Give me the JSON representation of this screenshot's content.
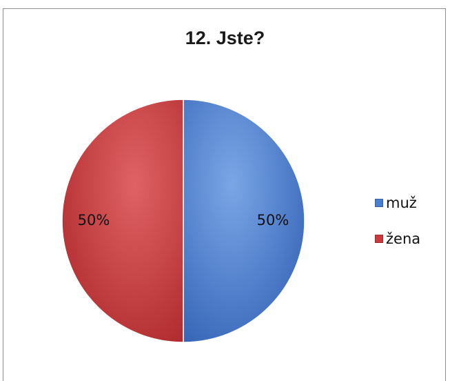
{
  "chart_data": {
    "type": "pie",
    "title": "12. Jste?",
    "categories": [
      "muž",
      "žena"
    ],
    "values": [
      50,
      50
    ],
    "data_labels": [
      "50%",
      "50%"
    ],
    "colors": [
      "#4a7fd0",
      "#cc3c3e"
    ],
    "legend_position": "right"
  }
}
